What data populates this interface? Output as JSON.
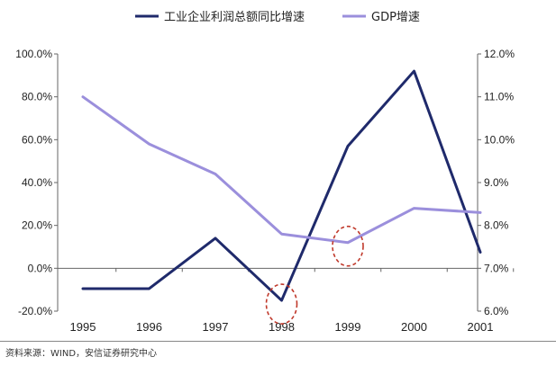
{
  "chart_data": {
    "type": "line",
    "categories": [
      "1995",
      "1996",
      "1997",
      "1998",
      "1999",
      "2000",
      "2001"
    ],
    "series": [
      {
        "name": "工业企业利润总额同比增速",
        "axis": "left",
        "color": "#1f2a6b",
        "values": [
          -9.5,
          -9.5,
          14,
          -15,
          57,
          92,
          7.5
        ]
      },
      {
        "name": "GDP增速",
        "axis": "right",
        "color": "#9b8fdc",
        "values": [
          11.0,
          9.9,
          9.2,
          7.8,
          7.6,
          8.4,
          8.3
        ]
      }
    ],
    "y_left": {
      "ylim": [
        -20,
        100
      ],
      "ticks": [
        -20,
        0,
        20,
        40,
        60,
        80,
        100
      ],
      "tick_labels": [
        "-20.0%",
        "0.0%",
        "20.0%",
        "40.0%",
        "60.0%",
        "80.0%",
        "100.0%"
      ]
    },
    "y_right": {
      "ylim": [
        6,
        12
      ],
      "ticks": [
        6,
        7,
        8,
        9,
        10,
        11,
        12
      ],
      "tick_labels": [
        "6.0%",
        "7.0%",
        "8.0%",
        "9.0%",
        "10.0%",
        "11.0%",
        "12.0%"
      ]
    },
    "grid": false,
    "legend_position": "top",
    "annotations": [
      {
        "type": "dashed-ellipse",
        "color": "#c0392b",
        "category": "1998",
        "series": "工业企业利润总额同比增速"
      },
      {
        "type": "dashed-ellipse",
        "color": "#c0392b",
        "category": "1999",
        "series": "GDP增速"
      }
    ]
  },
  "source_note": "资料来源：WIND，安信证券研究中心"
}
